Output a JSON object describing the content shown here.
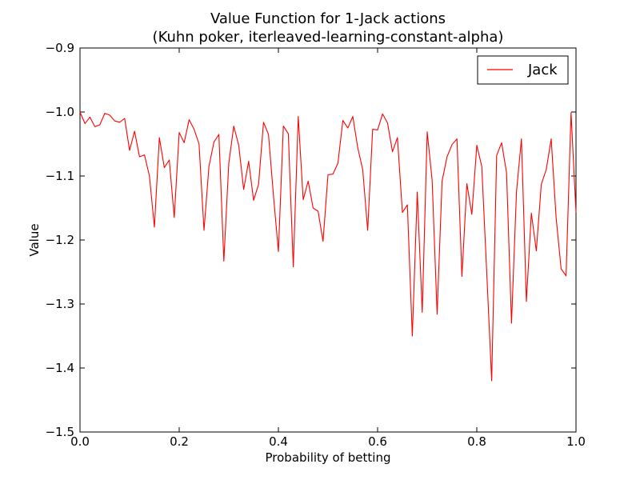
{
  "chart_data": {
    "type": "line",
    "title": "Value Function for 1-Jack actions",
    "subtitle": "(Kuhn poker, iterleaved-learning-constant-alpha)",
    "xlabel": "Probability of betting",
    "ylabel": "Value",
    "xlim": [
      0.0,
      1.0
    ],
    "ylim": [
      -1.5,
      -0.9
    ],
    "xticks": [
      0.0,
      0.2,
      0.4,
      0.6,
      0.8,
      1.0
    ],
    "xtick_labels": [
      "0.0",
      "0.2",
      "0.4",
      "0.6",
      "0.8",
      "1.0"
    ],
    "yticks": [
      -1.5,
      -1.4,
      -1.3,
      -1.2,
      -1.1,
      -1.0,
      -0.9
    ],
    "ytick_labels": [
      "−1.5",
      "−1.4",
      "−1.3",
      "−1.2",
      "−1.1",
      "−1.0",
      "−0.9"
    ],
    "grid": false,
    "legend_position": "top-right",
    "series": [
      {
        "name": "Jack",
        "color": "#ff0000",
        "x": [
          0.0,
          0.01,
          0.02,
          0.03,
          0.04,
          0.05,
          0.06,
          0.07,
          0.08,
          0.09,
          0.1,
          0.11,
          0.12,
          0.13,
          0.14,
          0.15,
          0.16,
          0.17,
          0.18,
          0.19,
          0.2,
          0.21,
          0.22,
          0.23,
          0.24,
          0.25,
          0.26,
          0.27,
          0.28,
          0.29,
          0.3,
          0.31,
          0.32,
          0.33,
          0.34,
          0.35,
          0.36,
          0.37,
          0.38,
          0.39,
          0.4,
          0.41,
          0.42,
          0.43,
          0.44,
          0.45,
          0.46,
          0.47,
          0.48,
          0.49,
          0.5,
          0.51,
          0.52,
          0.53,
          0.54,
          0.55,
          0.56,
          0.57,
          0.58,
          0.59,
          0.6,
          0.61,
          0.62,
          0.63,
          0.64,
          0.65,
          0.66,
          0.67,
          0.68,
          0.69,
          0.7,
          0.71,
          0.72,
          0.73,
          0.74,
          0.75,
          0.76,
          0.77,
          0.78,
          0.79,
          0.8,
          0.81,
          0.82,
          0.83,
          0.84,
          0.85,
          0.86,
          0.87,
          0.88,
          0.89,
          0.9,
          0.91,
          0.92,
          0.93,
          0.94,
          0.95,
          0.96,
          0.97,
          0.98,
          0.99,
          1.0
        ],
        "y": [
          -1.0,
          -1.018,
          -1.008,
          -1.023,
          -1.02,
          -1.002,
          -1.005,
          -1.014,
          -1.016,
          -1.01,
          -1.06,
          -1.03,
          -1.07,
          -1.067,
          -1.1,
          -1.18,
          -1.04,
          -1.087,
          -1.075,
          -1.165,
          -1.032,
          -1.048,
          -1.012,
          -1.027,
          -1.05,
          -1.185,
          -1.085,
          -1.047,
          -1.035,
          -1.233,
          -1.08,
          -1.022,
          -1.052,
          -1.121,
          -1.077,
          -1.138,
          -1.113,
          -1.016,
          -1.035,
          -1.13,
          -1.218,
          -1.022,
          -1.034,
          -1.242,
          -1.007,
          -1.137,
          -1.108,
          -1.15,
          -1.155,
          -1.202,
          -1.098,
          -1.097,
          -1.08,
          -1.013,
          -1.025,
          -1.007,
          -1.056,
          -1.09,
          -1.185,
          -1.027,
          -1.028,
          -1.003,
          -1.017,
          -1.062,
          -1.04,
          -1.157,
          -1.145,
          -1.35,
          -1.125,
          -1.313,
          -1.031,
          -1.107,
          -1.316,
          -1.108,
          -1.07,
          -1.051,
          -1.042,
          -1.257,
          -1.112,
          -1.16,
          -1.052,
          -1.085,
          -1.25,
          -1.42,
          -1.068,
          -1.048,
          -1.095,
          -1.33,
          -1.125,
          -1.042,
          -1.296,
          -1.158,
          -1.217,
          -1.113,
          -1.09,
          -1.042,
          -1.166,
          -1.245,
          -1.256,
          -1.001,
          -1.157
        ]
      }
    ]
  }
}
